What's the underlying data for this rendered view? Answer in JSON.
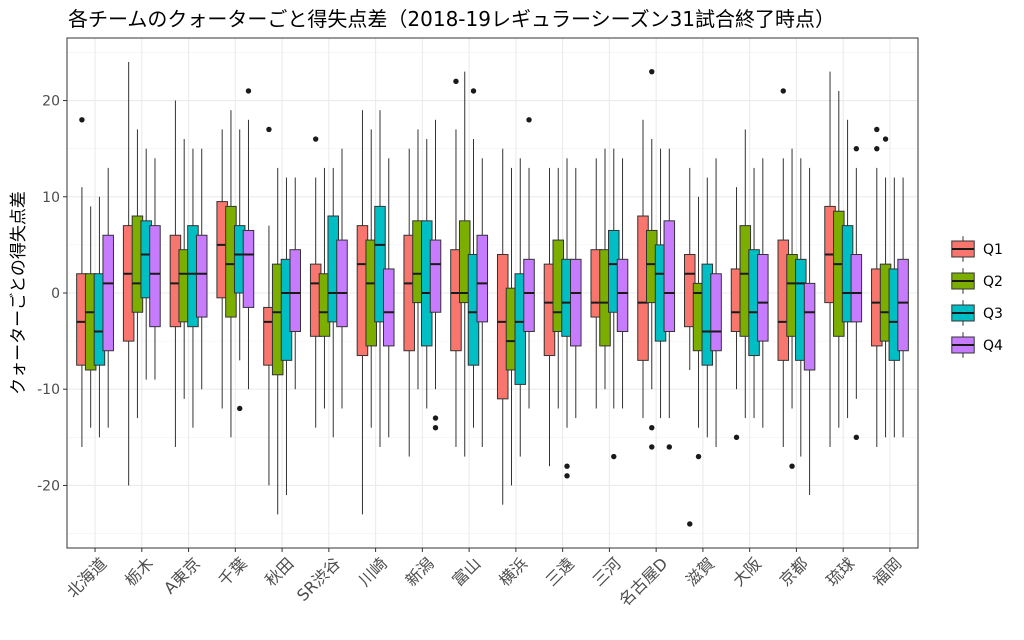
{
  "chart_data": {
    "type": "boxplot",
    "title": "各チームのクォーターごと得失点差（2018-19レギュラーシーズン31試合終了時点）",
    "xlabel": "",
    "ylabel": "クォーターごとの得失点差",
    "ylim": [
      -26.5,
      26.5
    ],
    "yticks": [
      -20,
      -10,
      0,
      10,
      20
    ],
    "grid": true,
    "legend": "right",
    "categories": [
      "北海道",
      "栃木",
      "A東京",
      "千葉",
      "秋田",
      "SR渋谷",
      "川崎",
      "新潟",
      "富山",
      "横浜",
      "三遠",
      "三河",
      "名古屋D",
      "滋賀",
      "大阪",
      "京都",
      "琉球",
      "福岡"
    ],
    "series": [
      {
        "name": "Q1",
        "color": "#F8766D",
        "boxes": [
          {
            "min": -16,
            "q1": -7.5,
            "median": -3,
            "q3": 2,
            "max": 11,
            "outliers": [
              18
            ]
          },
          {
            "min": -20,
            "q1": -5,
            "median": 2,
            "q3": 7,
            "max": 24,
            "outliers": []
          },
          {
            "min": -16,
            "q1": -3.5,
            "median": 1,
            "q3": 6,
            "max": 20,
            "outliers": []
          },
          {
            "min": -12,
            "q1": -0.5,
            "median": 5,
            "q3": 9.5,
            "max": 17,
            "outliers": []
          },
          {
            "min": -20,
            "q1": -7.5,
            "median": -3,
            "q3": -1.5,
            "max": 7,
            "outliers": [
              17
            ]
          },
          {
            "min": -14,
            "q1": -4.5,
            "median": 1,
            "q3": 3,
            "max": 12,
            "outliers": [
              16
            ]
          },
          {
            "min": -23,
            "q1": -6.5,
            "median": 3,
            "q3": 7,
            "max": 19,
            "outliers": []
          },
          {
            "min": -17,
            "q1": -6,
            "median": 1,
            "q3": 6,
            "max": 15,
            "outliers": []
          },
          {
            "min": -16,
            "q1": -6,
            "median": 0,
            "q3": 4.5,
            "max": 17,
            "outliers": [
              22
            ]
          },
          {
            "min": -22,
            "q1": -11,
            "median": -3,
            "q3": 4,
            "max": 15,
            "outliers": []
          },
          {
            "min": -18,
            "q1": -6.5,
            "median": -1,
            "q3": 3,
            "max": 13,
            "outliers": []
          },
          {
            "min": -12,
            "q1": -2.5,
            "median": -1,
            "q3": 4.5,
            "max": 14,
            "outliers": []
          },
          {
            "min": -13,
            "q1": -7,
            "median": -1,
            "q3": 8,
            "max": 18,
            "outliers": []
          },
          {
            "min": -8,
            "q1": -3.5,
            "median": 2,
            "q3": 4,
            "max": 13,
            "outliers": [
              -24
            ]
          },
          {
            "min": -10,
            "q1": -4,
            "median": -2,
            "q3": 2.5,
            "max": 11,
            "outliers": [
              -15
            ]
          },
          {
            "min": -16,
            "q1": -7,
            "median": -3,
            "q3": 5.5,
            "max": 14,
            "outliers": [
              21
            ]
          },
          {
            "min": -16,
            "q1": -1,
            "median": 4,
            "q3": 9,
            "max": 23,
            "outliers": []
          },
          {
            "min": -16,
            "q1": -5.5,
            "median": -1,
            "q3": 2.5,
            "max": 13,
            "outliers": [
              17,
              15
            ]
          }
        ]
      },
      {
        "name": "Q2",
        "color": "#7CAE00",
        "boxes": [
          {
            "min": -14,
            "q1": -8,
            "median": -2,
            "q3": 2,
            "max": 9,
            "outliers": []
          },
          {
            "min": -13,
            "q1": -2,
            "median": 1,
            "q3": 8,
            "max": 17,
            "outliers": []
          },
          {
            "min": -11,
            "q1": -3,
            "median": 2,
            "q3": 4.5,
            "max": 16,
            "outliers": []
          },
          {
            "min": -15,
            "q1": -2.5,
            "median": 3,
            "q3": 9,
            "max": 19,
            "outliers": []
          },
          {
            "min": -23,
            "q1": -8.5,
            "median": -2,
            "q3": 3,
            "max": 13,
            "outliers": []
          },
          {
            "min": -12,
            "q1": -4.5,
            "median": -2,
            "q3": 2,
            "max": 13,
            "outliers": []
          },
          {
            "min": -14,
            "q1": -5.5,
            "median": 1,
            "q3": 5.5,
            "max": 17,
            "outliers": []
          },
          {
            "min": -10,
            "q1": -1,
            "median": 2,
            "q3": 7.5,
            "max": 17,
            "outliers": []
          },
          {
            "min": -17,
            "q1": -1,
            "median": 0,
            "q3": 7.5,
            "max": 23,
            "outliers": []
          },
          {
            "min": -20,
            "q1": -8,
            "median": -5,
            "q3": 0.5,
            "max": 13,
            "outliers": []
          },
          {
            "min": -12,
            "q1": -4,
            "median": -2,
            "q3": 5.5,
            "max": 13,
            "outliers": []
          },
          {
            "min": -10,
            "q1": -5.5,
            "median": -1,
            "q3": 4.5,
            "max": 15,
            "outliers": []
          },
          {
            "min": -10,
            "q1": -1,
            "median": 3,
            "q3": 6.5,
            "max": 16,
            "outliers": [
              23,
              -14,
              -16
            ]
          },
          {
            "min": -14,
            "q1": -6,
            "median": 0,
            "q3": 1,
            "max": 10,
            "outliers": [
              -17
            ]
          },
          {
            "min": -13,
            "q1": -4.5,
            "median": 2,
            "q3": 7,
            "max": 17,
            "outliers": []
          },
          {
            "min": -12,
            "q1": -4.5,
            "median": 1,
            "q3": 4,
            "max": 15,
            "outliers": [
              -18
            ]
          },
          {
            "min": -14,
            "q1": -4.5,
            "median": 3,
            "q3": 8.5,
            "max": 21,
            "outliers": []
          },
          {
            "min": -15,
            "q1": -5,
            "median": -2,
            "q3": 3,
            "max": 12,
            "outliers": [
              16
            ]
          }
        ]
      },
      {
        "name": "Q3",
        "color": "#00BFC4",
        "boxes": [
          {
            "min": -15,
            "q1": -7.5,
            "median": -4,
            "q3": 2,
            "max": 10,
            "outliers": []
          },
          {
            "min": -9,
            "q1": -0.5,
            "median": 4,
            "q3": 7.5,
            "max": 15,
            "outliers": []
          },
          {
            "min": -14,
            "q1": -3.5,
            "median": 2,
            "q3": 7,
            "max": 15,
            "outliers": []
          },
          {
            "min": -7,
            "q1": 0,
            "median": 4,
            "q3": 7,
            "max": 17,
            "outliers": [
              -12
            ]
          },
          {
            "min": -21,
            "q1": -7,
            "median": 0,
            "q3": 3.5,
            "max": 12,
            "outliers": []
          },
          {
            "min": -15,
            "q1": -3,
            "median": 0,
            "q3": 8,
            "max": 13,
            "outliers": []
          },
          {
            "min": -16,
            "q1": -3,
            "median": 5,
            "q3": 9,
            "max": 19,
            "outliers": []
          },
          {
            "min": -12,
            "q1": -5.5,
            "median": 0,
            "q3": 7.5,
            "max": 16,
            "outliers": []
          },
          {
            "min": -14,
            "q1": -7.5,
            "median": -2,
            "q3": 4,
            "max": 16,
            "outliers": [
              21
            ]
          },
          {
            "min": -17,
            "q1": -9.5,
            "median": -3,
            "q3": 2,
            "max": 14,
            "outliers": []
          },
          {
            "min": -14,
            "q1": -4.5,
            "median": -1,
            "q3": 3.5,
            "max": 14,
            "outliers": [
              -18,
              -19
            ]
          },
          {
            "min": -12,
            "q1": -2,
            "median": 3,
            "q3": 6.5,
            "max": 15,
            "outliers": [
              -17
            ]
          },
          {
            "min": -13,
            "q1": -5,
            "median": 2,
            "q3": 5,
            "max": 15,
            "outliers": []
          },
          {
            "min": -15,
            "q1": -7.5,
            "median": -4,
            "q3": 3,
            "max": 12,
            "outliers": []
          },
          {
            "min": -13,
            "q1": -6.5,
            "median": -2,
            "q3": 4.5,
            "max": 13,
            "outliers": []
          },
          {
            "min": -17,
            "q1": -7,
            "median": 1,
            "q3": 3.5,
            "max": 14,
            "outliers": []
          },
          {
            "min": -13,
            "q1": -3,
            "median": 0,
            "q3": 7,
            "max": 18,
            "outliers": []
          },
          {
            "min": -15,
            "q1": -7,
            "median": -3,
            "q3": 2.5,
            "max": 12,
            "outliers": []
          }
        ]
      },
      {
        "name": "Q4",
        "color": "#C77CFF",
        "boxes": [
          {
            "min": -14,
            "q1": -6,
            "median": 1,
            "q3": 6,
            "max": 13,
            "outliers": []
          },
          {
            "min": -9,
            "q1": -3.5,
            "median": 2,
            "q3": 7,
            "max": 14,
            "outliers": []
          },
          {
            "min": -10,
            "q1": -2.5,
            "median": 2,
            "q3": 6,
            "max": 15,
            "outliers": []
          },
          {
            "min": -10,
            "q1": -1.5,
            "median": 4,
            "q3": 6.5,
            "max": 18,
            "outliers": [
              21
            ]
          },
          {
            "min": -10,
            "q1": -4,
            "median": 0,
            "q3": 4.5,
            "max": 12,
            "outliers": []
          },
          {
            "min": -12,
            "q1": -3.5,
            "median": 0,
            "q3": 5.5,
            "max": 15,
            "outliers": []
          },
          {
            "min": -15,
            "q1": -5.5,
            "median": -2,
            "q3": 2.5,
            "max": 14,
            "outliers": []
          },
          {
            "min": -10,
            "q1": -2,
            "median": 3,
            "q3": 5.5,
            "max": 18,
            "outliers": [
              -13,
              -14
            ]
          },
          {
            "min": -16,
            "q1": -3,
            "median": 1,
            "q3": 6,
            "max": 14,
            "outliers": []
          },
          {
            "min": -12,
            "q1": -4,
            "median": 0,
            "q3": 3.5,
            "max": 13,
            "outliers": [
              18
            ]
          },
          {
            "min": -13,
            "q1": -5.5,
            "median": 0,
            "q3": 3.5,
            "max": 13,
            "outliers": []
          },
          {
            "min": -12,
            "q1": -4,
            "median": 0,
            "q3": 3.5,
            "max": 14,
            "outliers": []
          },
          {
            "min": -13,
            "q1": -4,
            "median": 0,
            "q3": 7.5,
            "max": 15,
            "outliers": [
              -16
            ]
          },
          {
            "min": -16,
            "q1": -6,
            "median": -4,
            "q3": 2,
            "max": 14,
            "outliers": []
          },
          {
            "min": -14,
            "q1": -5,
            "median": -1,
            "q3": 4,
            "max": 14,
            "outliers": []
          },
          {
            "min": -21,
            "q1": -8,
            "median": -2,
            "q3": 1,
            "max": 13,
            "outliers": []
          },
          {
            "min": -11,
            "q1": -3,
            "median": 0,
            "q3": 4,
            "max": 13,
            "outliers": [
              15,
              -15
            ]
          },
          {
            "min": -15,
            "q1": -6,
            "median": -1,
            "q3": 3.5,
            "max": 12,
            "outliers": []
          }
        ]
      }
    ]
  }
}
